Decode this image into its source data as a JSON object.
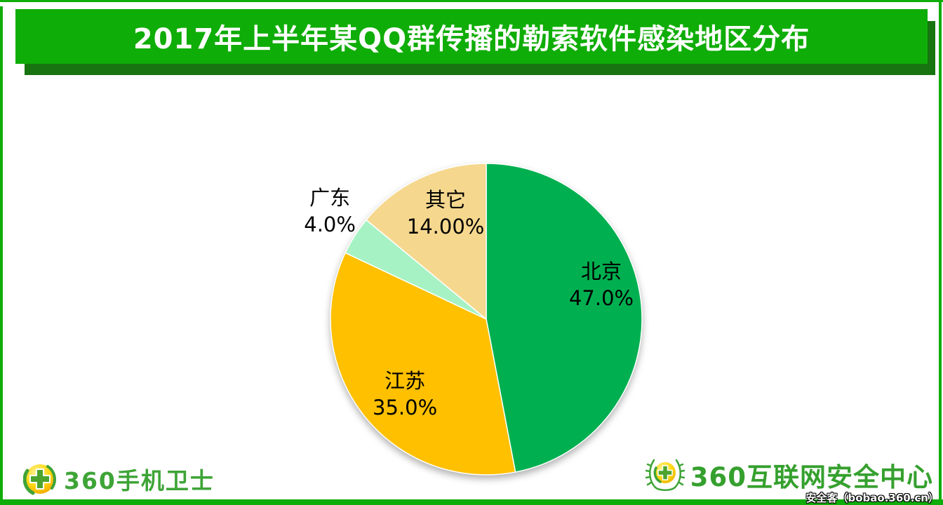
{
  "header": {
    "title": "2017年上半年某QQ群传播的勒索软件感染地区分布"
  },
  "chart_data": {
    "type": "pie",
    "title": "2017年上半年某QQ群传播的勒索软件感染地区分布",
    "unit": "percent",
    "total": 100,
    "start_angle_deg": 0,
    "direction": "clockwise",
    "legend_position": "none",
    "slices": [
      {
        "label": "北京",
        "value": 47.0,
        "display": "47.0%",
        "color": "#00B050",
        "label_position": "inside",
        "label_fx": 0.739,
        "label_fy": -0.252
      },
      {
        "label": "江苏",
        "value": 35.0,
        "display": "35.0%",
        "color": "#FFC000",
        "label_position": "inside",
        "label_fx": -0.522,
        "label_fy": 0.45
      },
      {
        "label": "广东",
        "value": 4.0,
        "display": "4.0%",
        "color": "#A6F2C4",
        "label_position": "outside",
        "label_fx": -1.004,
        "label_fy": -0.725
      },
      {
        "label": "其它",
        "value": 14.0,
        "display": "14.00%",
        "color": "#F5D78E",
        "label_position": "inside",
        "label_fx": -0.261,
        "label_fy": -0.712
      }
    ]
  },
  "footer": {
    "left_brand": "360手机卫士",
    "right_brand": "360互联网安全中心",
    "watermark": "安全客（bobao.360.cn）"
  },
  "colors": {
    "banner_green": "#0FAD07",
    "banner_shadow_green": "#177410",
    "frame_green": "#0FAD07",
    "pie_beijing": "#00B050",
    "pie_jiangsu": "#FFC000",
    "pie_guangdong": "#A6F2C4",
    "pie_other": "#F5D78E",
    "brand_text_green": "#3AA335",
    "label_text": "#000000",
    "title_text": "#FFFFFF"
  }
}
